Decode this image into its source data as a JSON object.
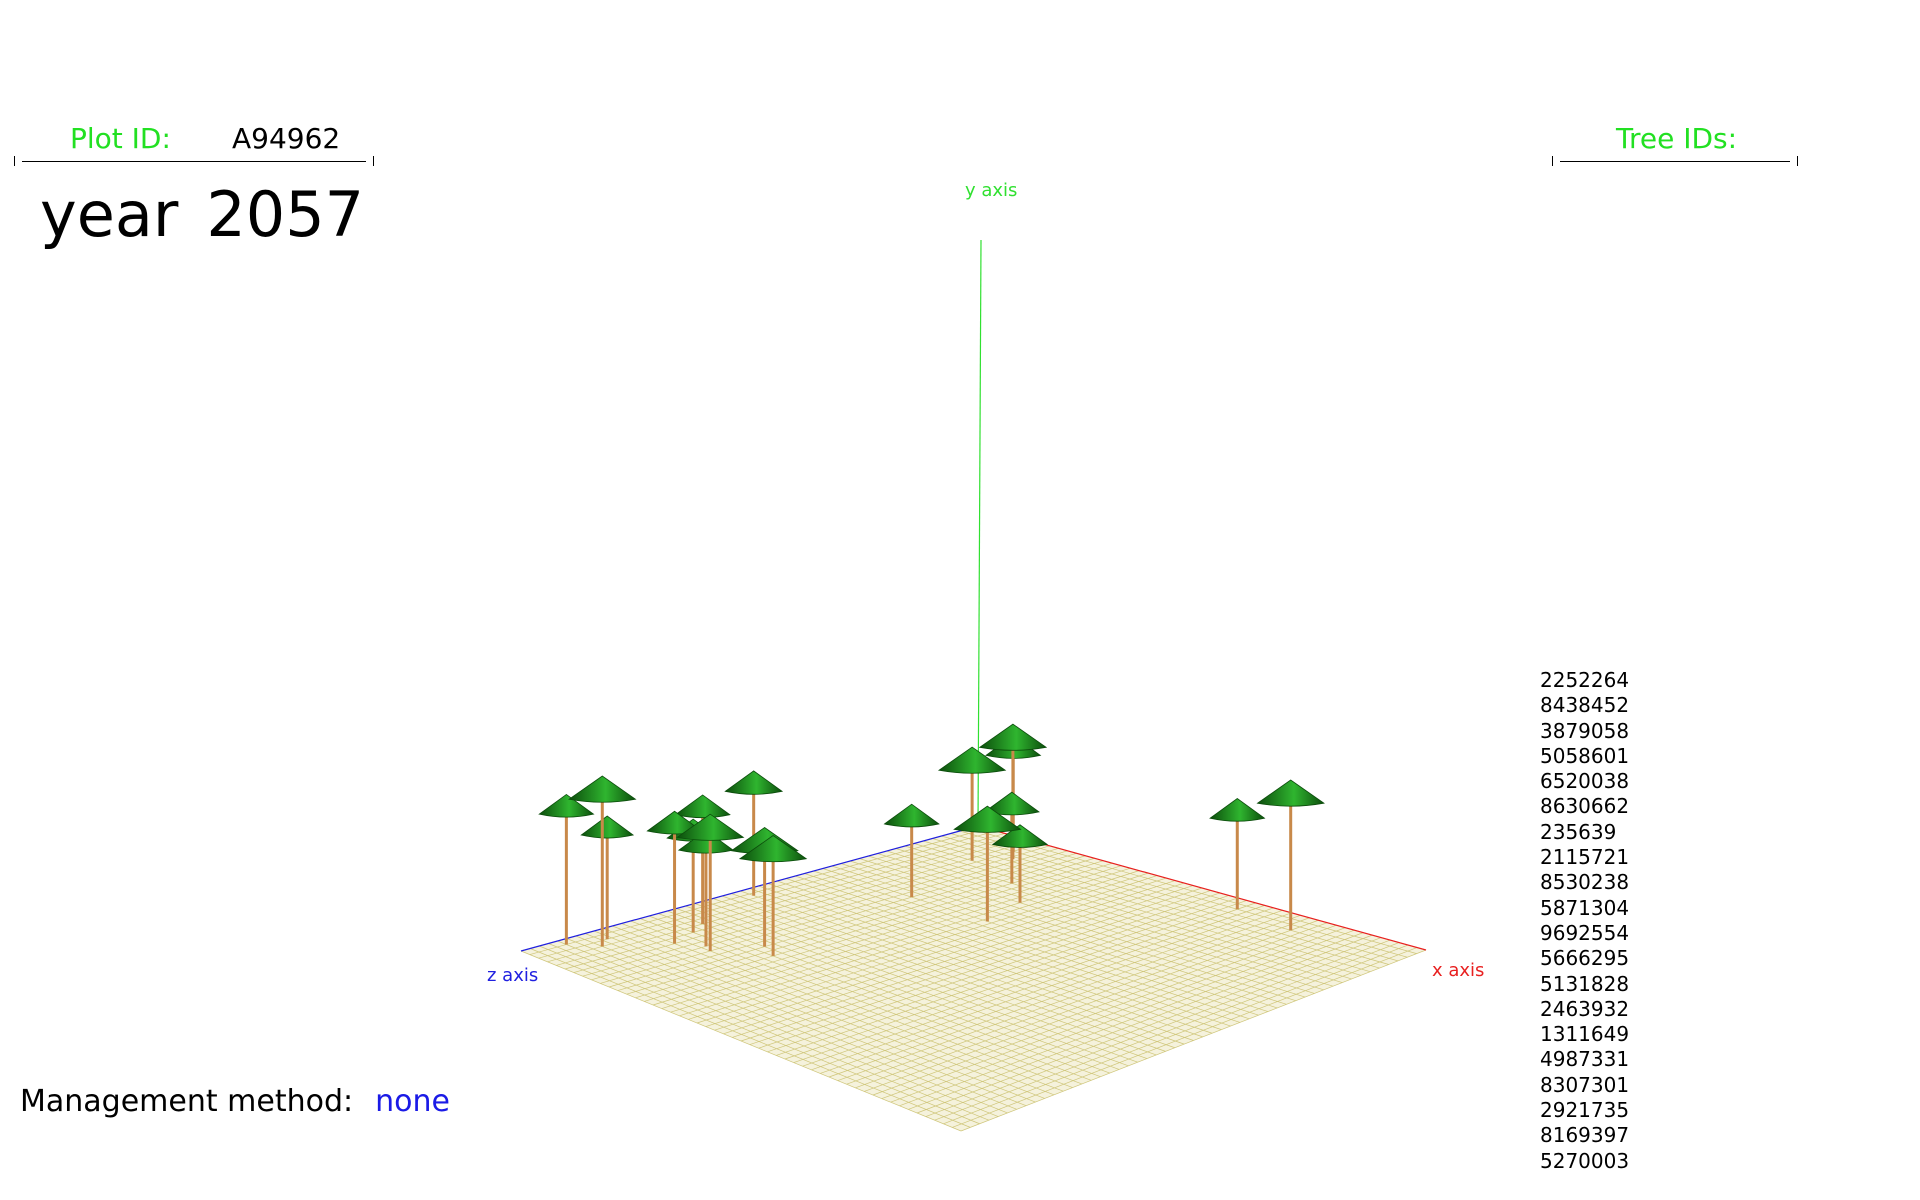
{
  "plot": {
    "label": "Plot ID:",
    "id": "A94962"
  },
  "year": {
    "label": "year",
    "value": "2057"
  },
  "tree_ids": {
    "label": "Tree IDs:",
    "items": [
      "2252264",
      "8438452",
      "3879058",
      "5058601",
      "6520038",
      "8630662",
      "235639",
      "2115721",
      "8530238",
      "5871304",
      "9692554",
      "5666295",
      "5131828",
      "2463932",
      "1311649",
      "4987331",
      "8307301",
      "2921735",
      "8169397",
      "5270003"
    ]
  },
  "management": {
    "label": "Management method:",
    "value": "none"
  },
  "axes": {
    "x_label": "x axis",
    "y_label": "y axis",
    "z_label": "z axis",
    "x_color": "#e82020",
    "y_color": "#30e030",
    "z_color": "#2020e0"
  },
  "colors": {
    "ground": "#f5f2dc",
    "grid": "#cfc67a",
    "trunk": "#c8894a",
    "crown_light": "#2fb52f",
    "crown_dark": "#0c4d0c"
  },
  "plot_size": 100,
  "trees": [
    {
      "id": "2252264",
      "x": 3,
      "z": 52,
      "height": 14,
      "crown": 0.6
    },
    {
      "id": "8438452",
      "x": 2,
      "z": 92,
      "height": 16,
      "crown": 0.55
    },
    {
      "id": "3879058",
      "x": 6,
      "z": 88,
      "height": 18,
      "crown": 0.8
    },
    {
      "id": "5058601",
      "x": 4,
      "z": 85,
      "height": 13,
      "crown": 0.5
    },
    {
      "id": "6520038",
      "x": 8,
      "z": 68,
      "height": 14,
      "crown": 0.55
    },
    {
      "id": "8630662",
      "x": 10,
      "z": 72,
      "height": 12,
      "crown": 0.5
    },
    {
      "id": "235639",
      "x": 12,
      "z": 78,
      "height": 14,
      "crown": 0.55
    },
    {
      "id": "2115721",
      "x": 18,
      "z": 76,
      "height": 14,
      "crown": 0.8
    },
    {
      "id": "8530238",
      "x": 16,
      "z": 75,
      "height": 12,
      "crown": 0.55
    },
    {
      "id": "5871304",
      "x": 22,
      "z": 68,
      "height": 12,
      "crown": 0.8
    },
    {
      "id": "9692554",
      "x": 26,
      "z": 70,
      "height": 12,
      "crown": 0.8
    },
    {
      "id": "5666295",
      "x": 20,
      "z": 34,
      "height": 10,
      "crown": 0.55
    },
    {
      "id": "5131828",
      "x": 14,
      "z": 6,
      "height": 14,
      "crown": 0.55
    },
    {
      "id": "2463932",
      "x": 17,
      "z": 9,
      "height": 16,
      "crown": 0.8
    },
    {
      "id": "1311649",
      "x": 13,
      "z": 14,
      "height": 13,
      "crown": 0.8
    },
    {
      "id": "4987331",
      "x": 26,
      "z": 18,
      "height": 10,
      "crown": 0.55
    },
    {
      "id": "8307301",
      "x": 34,
      "z": 24,
      "height": 8,
      "crown": 0.55
    },
    {
      "id": "2921735",
      "x": 37,
      "z": 34,
      "height": 12,
      "crown": 0.8
    },
    {
      "id": "8169397",
      "x": 62,
      "z": 4,
      "height": 12,
      "crown": 0.55
    },
    {
      "id": "5270003",
      "x": 76,
      "z": 6,
      "height": 16,
      "crown": 0.8
    }
  ]
}
